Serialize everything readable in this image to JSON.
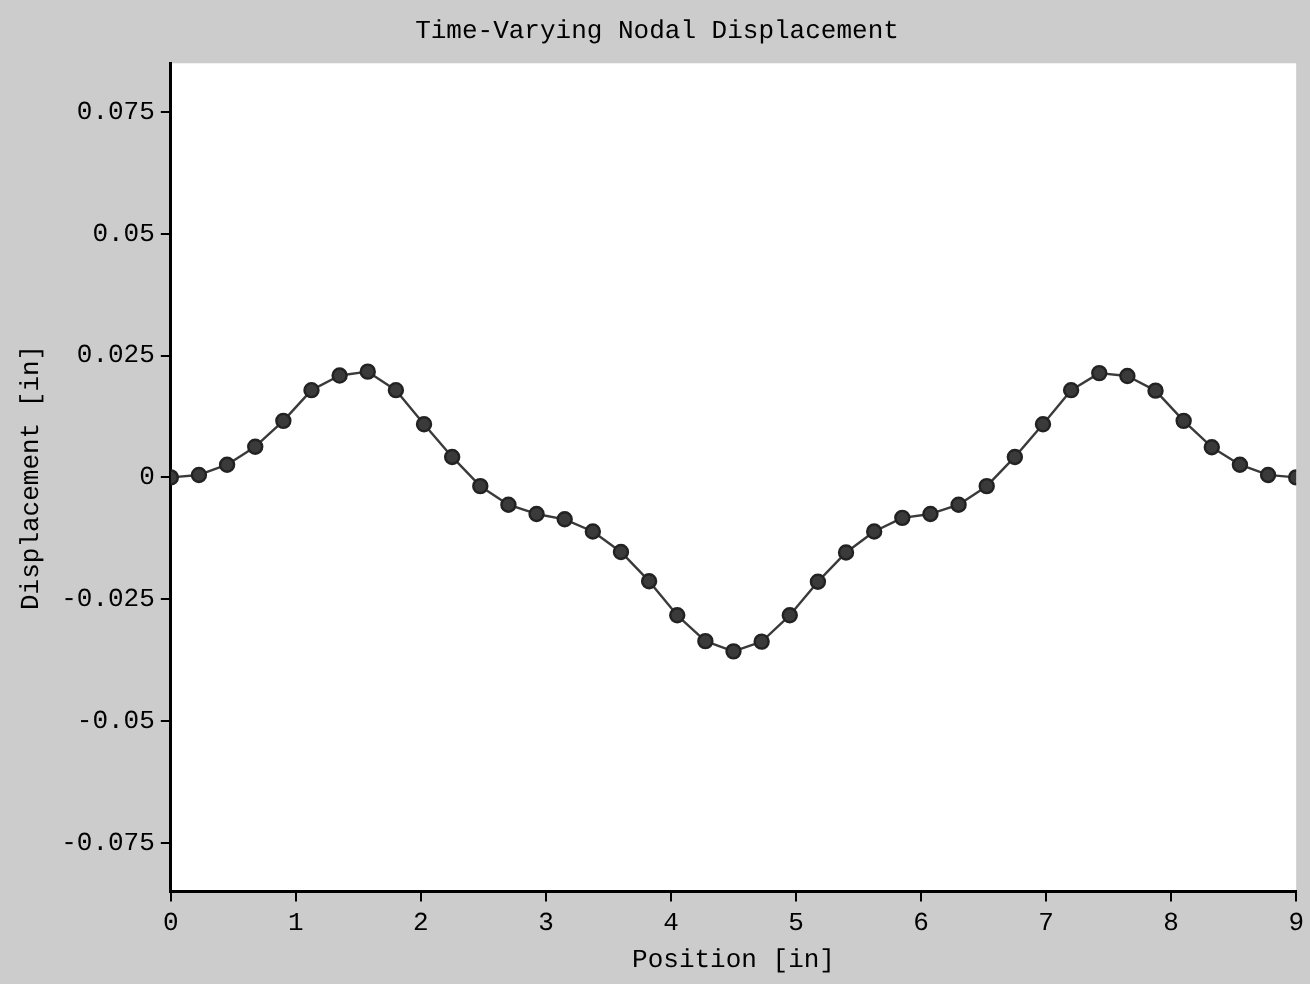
{
  "chart_data": {
    "type": "line",
    "title": "Time-Varying Nodal Displacement",
    "xlabel": "Position [in]",
    "ylabel": "Displacement [in]",
    "x": [
      0,
      0.225,
      0.45,
      0.675,
      0.9,
      1.125,
      1.35,
      1.575,
      1.8,
      2.025,
      2.25,
      2.475,
      2.7,
      2.925,
      3.15,
      3.375,
      3.6,
      3.825,
      4.05,
      4.275,
      4.5,
      4.725,
      4.95,
      5.175,
      5.4,
      5.625,
      5.85,
      6.075,
      6.3,
      6.525,
      6.75,
      6.975,
      7.2,
      7.425,
      7.65,
      7.875,
      8.1,
      8.325,
      8.55,
      8.775,
      9
    ],
    "series": [
      {
        "color": "#3a3a3a",
        "values": [
          0,
          0.0005,
          0.0026,
          0.0063,
          0.0116,
          0.0179,
          0.0209,
          0.0217,
          0.0179,
          0.0109,
          0.0042,
          -0.0018,
          -0.0056,
          -0.0075,
          -0.0086,
          -0.0111,
          -0.0153,
          -0.0213,
          -0.0283,
          -0.0336,
          -0.0357,
          -0.0337,
          -0.0283,
          -0.0214,
          -0.0154,
          -0.0111,
          -0.0083,
          -0.0075,
          -0.0056,
          -0.0018,
          0.0042,
          0.0109,
          0.0179,
          0.0214,
          0.0208,
          0.0178,
          0.0116,
          0.0062,
          0.0026,
          0.0005,
          0
        ]
      }
    ],
    "xlim": [
      0,
      9
    ],
    "xticks": [
      0,
      1,
      2,
      3,
      4,
      5,
      6,
      7,
      8,
      9
    ],
    "ylim": [
      -0.085,
      0.085
    ],
    "yticks": [
      -0.075,
      -0.05,
      -0.025,
      0,
      0.025,
      0.05,
      0.075
    ],
    "grid": false,
    "marker": "circle",
    "line_style": "solid"
  }
}
